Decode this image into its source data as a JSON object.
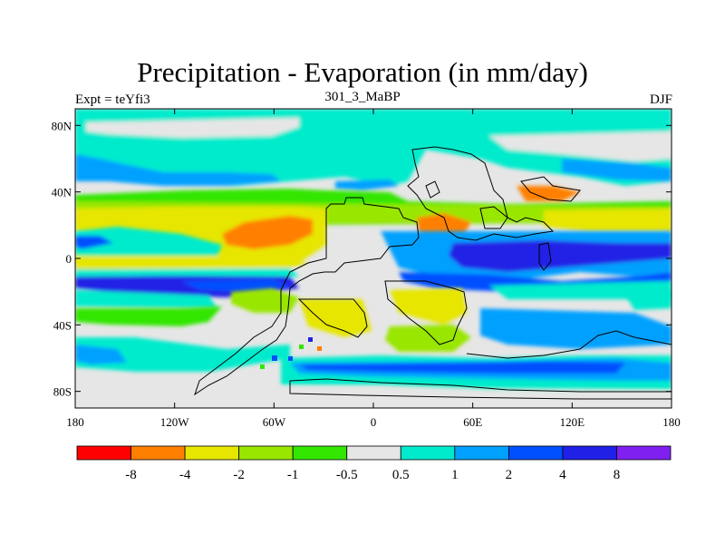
{
  "header": {
    "title": "Precipitation - Evaporation (in mm/day)",
    "left_label": "Expt = teYfi3",
    "center_label": "301_3_MaBP",
    "right_label": "DJF"
  },
  "map": {
    "x_ticks": [
      "180",
      "120W",
      "60W",
      "0",
      "60E",
      "120E",
      "180"
    ],
    "y_ticks": [
      "80N",
      "40N",
      "0",
      "40S",
      "80S"
    ],
    "background_color": "#e6e6e6"
  },
  "colorbar": {
    "colors": [
      "#ff0000",
      "#ff8000",
      "#e6e600",
      "#99e600",
      "#33e600",
      "#e6e6e6",
      "#00ebcc",
      "#00a0ff",
      "#0050ff",
      "#2020e6",
      "#8020f0"
    ],
    "labels": [
      "-8",
      "-4",
      "-2",
      "-1",
      "-0.5",
      "0.5",
      "1",
      "2",
      "4",
      "8"
    ]
  }
}
